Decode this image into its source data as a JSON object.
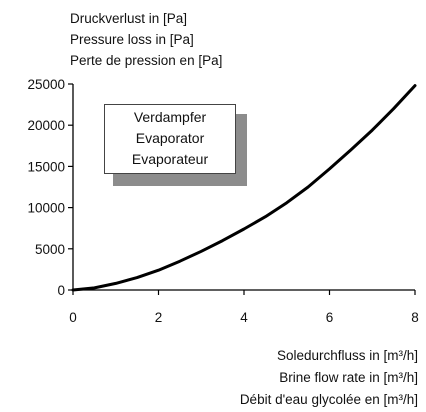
{
  "ylabel": [
    "Druckverlust in [Pa]",
    "Pressure loss in [Pa]",
    "Perte de pression en [Pa]"
  ],
  "xlabel": [
    "Soledurchfluss in [m³/h]",
    "Brine flow rate in [m³/h]",
    "Débit d'eau glycolée en [m³/h]"
  ],
  "annotation": [
    "Verdampfer",
    "Evaporator",
    "Evaporateur"
  ],
  "chart_data": {
    "type": "line",
    "title": "",
    "xlabel": "Soledurchfluss in [m³/h] / Brine flow rate in [m³/h] / Débit d'eau glycolée en [m³/h]",
    "ylabel": "Druckverlust in [Pa] / Pressure loss in [Pa] / Perte de pression en [Pa]",
    "xlim": [
      0,
      8
    ],
    "ylim": [
      0,
      25000
    ],
    "xticks": [
      0,
      2,
      4,
      6,
      8
    ],
    "yticks": [
      0,
      5000,
      10000,
      15000,
      20000,
      25000
    ],
    "xtick_labels": [
      "0",
      "2",
      "4",
      "6",
      "8"
    ],
    "ytick_labels": [
      "0",
      "5000",
      "10000",
      "15000",
      "20000",
      "25000"
    ],
    "grid": false,
    "series": [
      {
        "x": [
          0,
          0.5,
          1,
          1.5,
          2,
          2.5,
          3,
          3.5,
          4,
          4.5,
          5,
          5.5,
          6,
          6.5,
          7,
          7.5,
          8
        ],
        "y": [
          0,
          250,
          800,
          1500,
          2400,
          3500,
          4700,
          6000,
          7400,
          8900,
          10600,
          12500,
          14700,
          17000,
          19400,
          22000,
          24800
        ],
        "color": "#000000"
      }
    ]
  }
}
